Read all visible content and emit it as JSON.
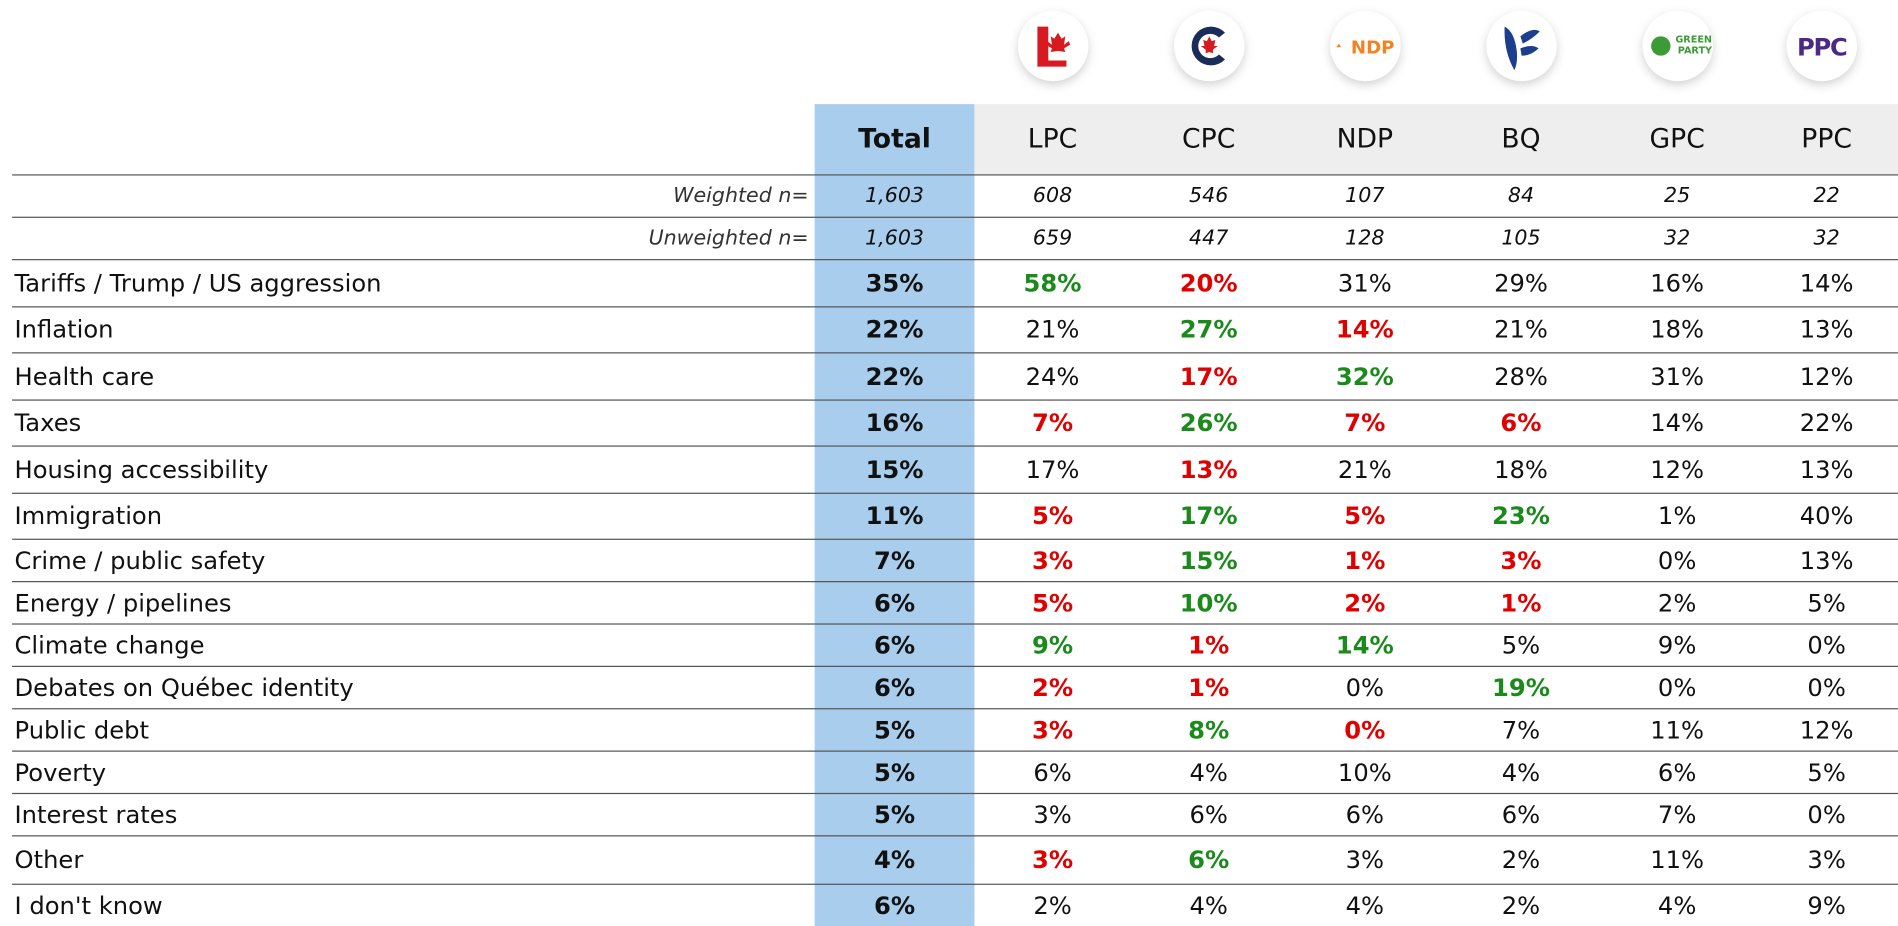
{
  "logos": {
    "ndp": "NDP",
    "gpc": [
      "GREEN",
      "PARTY"
    ],
    "ppc": "PPC"
  },
  "columns": [
    "Total",
    "LPC",
    "CPC",
    "NDP",
    "BQ",
    "GPC",
    "PPC"
  ],
  "base_rows": [
    {
      "label": "Weighted n=",
      "cells": [
        "1,603",
        "608",
        "546",
        "107",
        "84",
        "25",
        "22"
      ]
    },
    {
      "label": "Unweighted n=",
      "cells": [
        "1,603",
        "659",
        "447",
        "128",
        "105",
        "32",
        "32"
      ]
    }
  ],
  "rows": [
    {
      "label": "Tariffs / Trump / US aggression",
      "cells": [
        "35%",
        "58%",
        "20%",
        "31%",
        "29%",
        "16%",
        "14%"
      ],
      "tones": [
        null,
        "green",
        "red",
        null,
        null,
        null,
        null
      ]
    },
    {
      "label": "Inflation",
      "cells": [
        "22%",
        "21%",
        "27%",
        "14%",
        "21%",
        "18%",
        "13%"
      ],
      "tones": [
        null,
        null,
        "green",
        "red",
        null,
        null,
        null
      ]
    },
    {
      "label": "Health care",
      "cells": [
        "22%",
        "24%",
        "17%",
        "32%",
        "28%",
        "31%",
        "12%"
      ],
      "tones": [
        null,
        null,
        "red",
        "green",
        null,
        null,
        null
      ]
    },
    {
      "label": "Taxes",
      "cells": [
        "16%",
        "7%",
        "26%",
        "7%",
        "6%",
        "14%",
        "22%"
      ],
      "tones": [
        null,
        "red",
        "green",
        "red",
        "red",
        null,
        null
      ]
    },
    {
      "label": "Housing accessibility",
      "cells": [
        "15%",
        "17%",
        "13%",
        "21%",
        "18%",
        "12%",
        "13%"
      ],
      "tones": [
        null,
        null,
        "red",
        null,
        null,
        null,
        null
      ]
    },
    {
      "label": "Immigration",
      "cells": [
        "11%",
        "5%",
        "17%",
        "5%",
        "23%",
        "1%",
        "40%"
      ],
      "tones": [
        null,
        "red",
        "green",
        "red",
        "green",
        null,
        null
      ]
    },
    {
      "label": "Crime / public safety",
      "cells": [
        "7%",
        "3%",
        "15%",
        "1%",
        "3%",
        "0%",
        "13%"
      ],
      "tones": [
        null,
        "red",
        "green",
        "red",
        "red",
        null,
        null
      ]
    },
    {
      "label": "Energy / pipelines",
      "cells": [
        "6%",
        "5%",
        "10%",
        "2%",
        "1%",
        "2%",
        "5%"
      ],
      "tones": [
        null,
        "red",
        "green",
        "red",
        "red",
        null,
        null
      ]
    },
    {
      "label": "Climate change",
      "cells": [
        "6%",
        "9%",
        "1%",
        "14%",
        "5%",
        "9%",
        "0%"
      ],
      "tones": [
        null,
        "green",
        "red",
        "green",
        null,
        null,
        null
      ]
    },
    {
      "label": "Debates on Québec identity",
      "cells": [
        "6%",
        "2%",
        "1%",
        "0%",
        "19%",
        "0%",
        "0%"
      ],
      "tones": [
        null,
        "red",
        "red",
        null,
        "green",
        null,
        null
      ]
    },
    {
      "label": "Public debt",
      "cells": [
        "5%",
        "3%",
        "8%",
        "0%",
        "7%",
        "11%",
        "12%"
      ],
      "tones": [
        null,
        "red",
        "green",
        "red",
        null,
        null,
        null
      ]
    },
    {
      "label": "Poverty",
      "cells": [
        "5%",
        "6%",
        "4%",
        "10%",
        "4%",
        "6%",
        "5%"
      ],
      "tones": [
        null,
        null,
        null,
        null,
        null,
        null,
        null
      ]
    },
    {
      "label": "Interest rates",
      "cells": [
        "5%",
        "3%",
        "6%",
        "6%",
        "6%",
        "7%",
        "0%"
      ],
      "tones": [
        null,
        null,
        null,
        null,
        null,
        null,
        null
      ]
    },
    {
      "label": "Other",
      "cells": [
        "4%",
        "3%",
        "6%",
        "3%",
        "2%",
        "11%",
        "3%"
      ],
      "tones": [
        null,
        "red",
        "green",
        null,
        null,
        null,
        null
      ]
    },
    {
      "label": "I don't know",
      "cells": [
        "6%",
        "2%",
        "4%",
        "4%",
        "2%",
        "4%",
        "9%"
      ],
      "tones": [
        null,
        null,
        null,
        null,
        null,
        null,
        null
      ]
    }
  ]
}
